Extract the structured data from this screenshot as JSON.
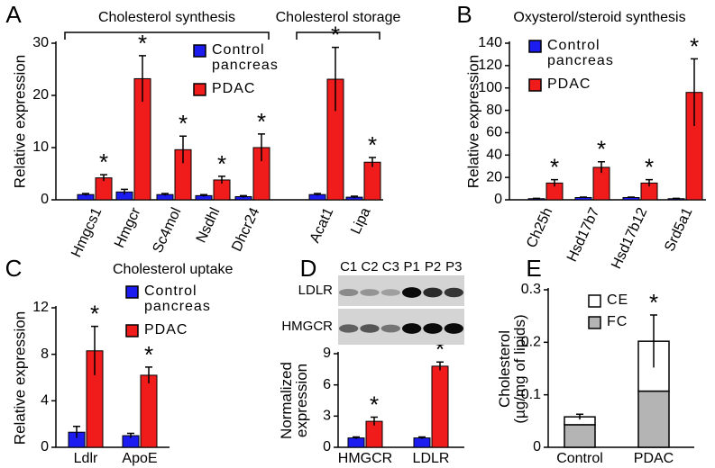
{
  "chart_data": [
    {
      "type": "bar",
      "panel": "A",
      "ylabel": "Relative expression",
      "categories": [
        "Hmgcs1",
        "Hmgcr",
        "Sc4mol",
        "Nsdhl",
        "Dhcr24",
        "Acat1",
        "Lipa"
      ],
      "groups": [
        {
          "label": "Cholesterol synthesis",
          "categories": [
            "Hmgcs1",
            "Hmgcr",
            "Sc4mol",
            "Nsdhl",
            "Dhcr24"
          ]
        },
        {
          "label": "Cholesterol storage",
          "categories": [
            "Acat1",
            "Lipa"
          ]
        }
      ],
      "series": [
        {
          "name": "Control pancreas",
          "color": "#1c1cf0",
          "values": [
            1.0,
            1.5,
            1.0,
            0.8,
            0.6,
            1.0,
            0.5
          ],
          "errors": [
            0.2,
            0.5,
            0.2,
            0.2,
            0.2,
            0.2,
            0.2
          ]
        },
        {
          "name": "PDAC",
          "color": "#f01c1c",
          "values": [
            4.2,
            23.2,
            9.6,
            3.8,
            10.0,
            23.1,
            7.2
          ],
          "errors": [
            0.6,
            4.4,
            2.6,
            0.7,
            2.6,
            6.1,
            0.9
          ],
          "annotations": [
            "*",
            "*",
            "*",
            "*",
            "*",
            "*",
            "*"
          ]
        }
      ],
      "ylim": [
        0,
        30
      ],
      "yticks": [
        0,
        10,
        20,
        30
      ]
    },
    {
      "type": "bar",
      "panel": "B",
      "title": "Oxysterol/steroid synthesis",
      "ylabel": "Relative expression",
      "categories": [
        "Ch25h",
        "Hsd17b7",
        "Hsd17b12",
        "Srd5a1"
      ],
      "series": [
        {
          "name": "Control pancreas",
          "color": "#1c1cf0",
          "values": [
            1,
            2,
            2,
            1
          ],
          "errors": [
            0.3,
            0.4,
            0.4,
            0.3
          ]
        },
        {
          "name": "PDAC",
          "color": "#f01c1c",
          "values": [
            15,
            29,
            15,
            96
          ],
          "errors": [
            3,
            5,
            3,
            30
          ],
          "annotations": [
            "*",
            "*",
            "*",
            "*"
          ]
        }
      ],
      "ylim": [
        0,
        140
      ],
      "yticks": [
        0,
        20,
        40,
        60,
        80,
        100,
        120,
        140
      ]
    },
    {
      "type": "bar",
      "panel": "C",
      "title": "Cholesterol uptake",
      "ylabel": "Relative expression",
      "categories": [
        "Ldlr",
        "ApoE"
      ],
      "series": [
        {
          "name": "Control pancreas",
          "color": "#1c1cf0",
          "values": [
            1.3,
            1.0
          ],
          "errors": [
            0.5,
            0.2
          ]
        },
        {
          "name": "PDAC",
          "color": "#f01c1c",
          "values": [
            8.3,
            6.2
          ],
          "errors": [
            2.1,
            0.7
          ],
          "annotations": [
            "*",
            "*"
          ]
        }
      ],
      "ylim": [
        0,
        12
      ],
      "yticks": [
        0,
        4,
        8,
        12
      ]
    },
    {
      "type": "bar",
      "panel": "D",
      "ylabel": "Normalized expression",
      "blot": {
        "lanes": [
          "C1",
          "C2",
          "C3",
          "P1",
          "P2",
          "P3"
        ],
        "lane_colors": [
          "#1c1cc8",
          "#1c1cc8",
          "#1c1cc8",
          "#d01c1c",
          "#d01c1c",
          "#d01c1c"
        ],
        "rows": [
          "LDLR",
          "HMGCR"
        ]
      },
      "categories": [
        "HMGCR",
        "LDLR"
      ],
      "series": [
        {
          "color": "#1c1cf0",
          "values": [
            0.9,
            0.9
          ],
          "errors": [
            0.1,
            0.1
          ]
        },
        {
          "color": "#f01c1c",
          "values": [
            2.5,
            7.8
          ],
          "errors": [
            0.4,
            0.4
          ],
          "annotations": [
            "*",
            "*"
          ]
        }
      ],
      "ylim": [
        0,
        9
      ],
      "yticks": [
        0,
        3,
        6,
        9
      ]
    },
    {
      "type": "stacked_bar",
      "panel": "E",
      "ylabel": "Cholesterol (µg/mg of lipids)",
      "categories": [
        "Control pancreas",
        "PDAC"
      ],
      "series": [
        {
          "name": "FC",
          "color": "#b4b4b4",
          "values": [
            0.043,
            0.107
          ]
        },
        {
          "name": "CE",
          "color": "#ffffff",
          "values": [
            0.015,
            0.095
          ],
          "errors": [
            0.005,
            0.05
          ],
          "annotations": [
            null,
            "*"
          ]
        }
      ],
      "ylim": [
        0,
        0.3
      ],
      "yticks": [
        0,
        0.1,
        0.2,
        0.3
      ]
    }
  ]
}
